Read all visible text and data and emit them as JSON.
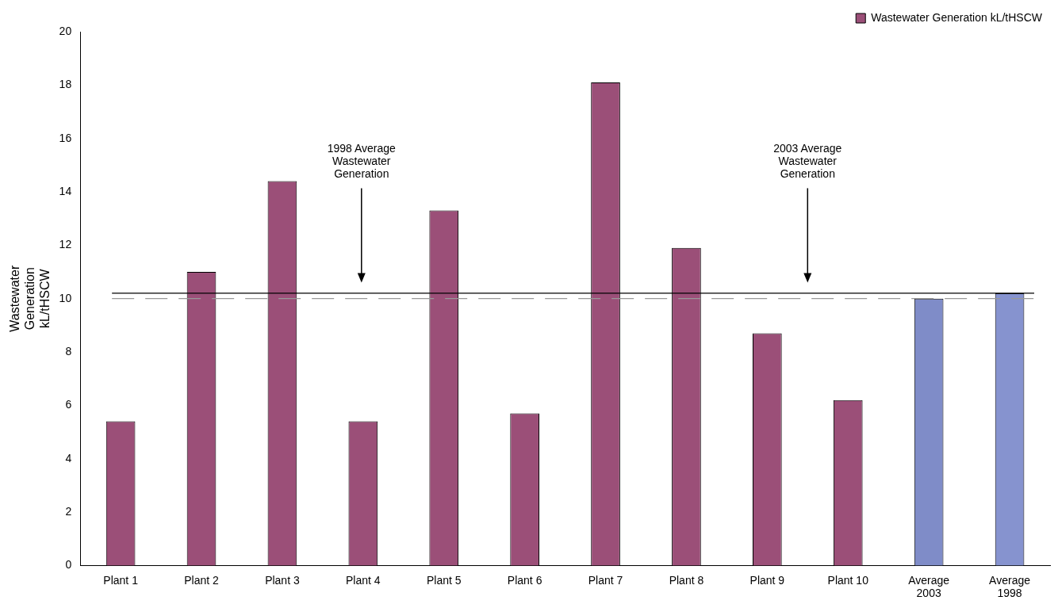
{
  "chart_data": {
    "type": "bar",
    "ylabel": "Wastewater Generation kL/tHSCW",
    "categories": [
      "Plant 1",
      "Plant 2",
      "Plant 3",
      "Plant 4",
      "Plant 5",
      "Plant 6",
      "Plant 7",
      "Plant 8",
      "Plant 9",
      "Plant 10",
      "Average 2003",
      "Average 1998"
    ],
    "series": [
      {
        "name": "Wastewater Generation kL/tHSCW",
        "color": "#9b4f78",
        "colors": [
          "#9b4f78",
          "#9b4f78",
          "#9b4f78",
          "#9b4f78",
          "#9b4f78",
          "#9b4f78",
          "#9b4f78",
          "#9b4f78",
          "#9b4f78",
          "#9b4f78",
          "#7f8cc8",
          "#8693cf"
        ],
        "values": [
          5.4,
          11.0,
          14.4,
          5.4,
          13.3,
          5.7,
          18.1,
          11.9,
          8.7,
          6.2,
          10.0,
          10.2
        ]
      }
    ],
    "ylim": [
      0,
      20
    ],
    "yticks": [
      0,
      2,
      4,
      6,
      8,
      10,
      12,
      14,
      16,
      18,
      20
    ],
    "grid": false,
    "legend": "top right",
    "ref_lines": [
      {
        "axis": "y",
        "value": 10.2,
        "color": "#000000",
        "line_style": "solid"
      },
      {
        "axis": "y",
        "value": 10.0,
        "color": "#999999",
        "line_style": "dashed"
      }
    ],
    "annotations": [
      "1998 Average Wastewater Generation",
      "2003 Average Wastewater Generation"
    ]
  }
}
